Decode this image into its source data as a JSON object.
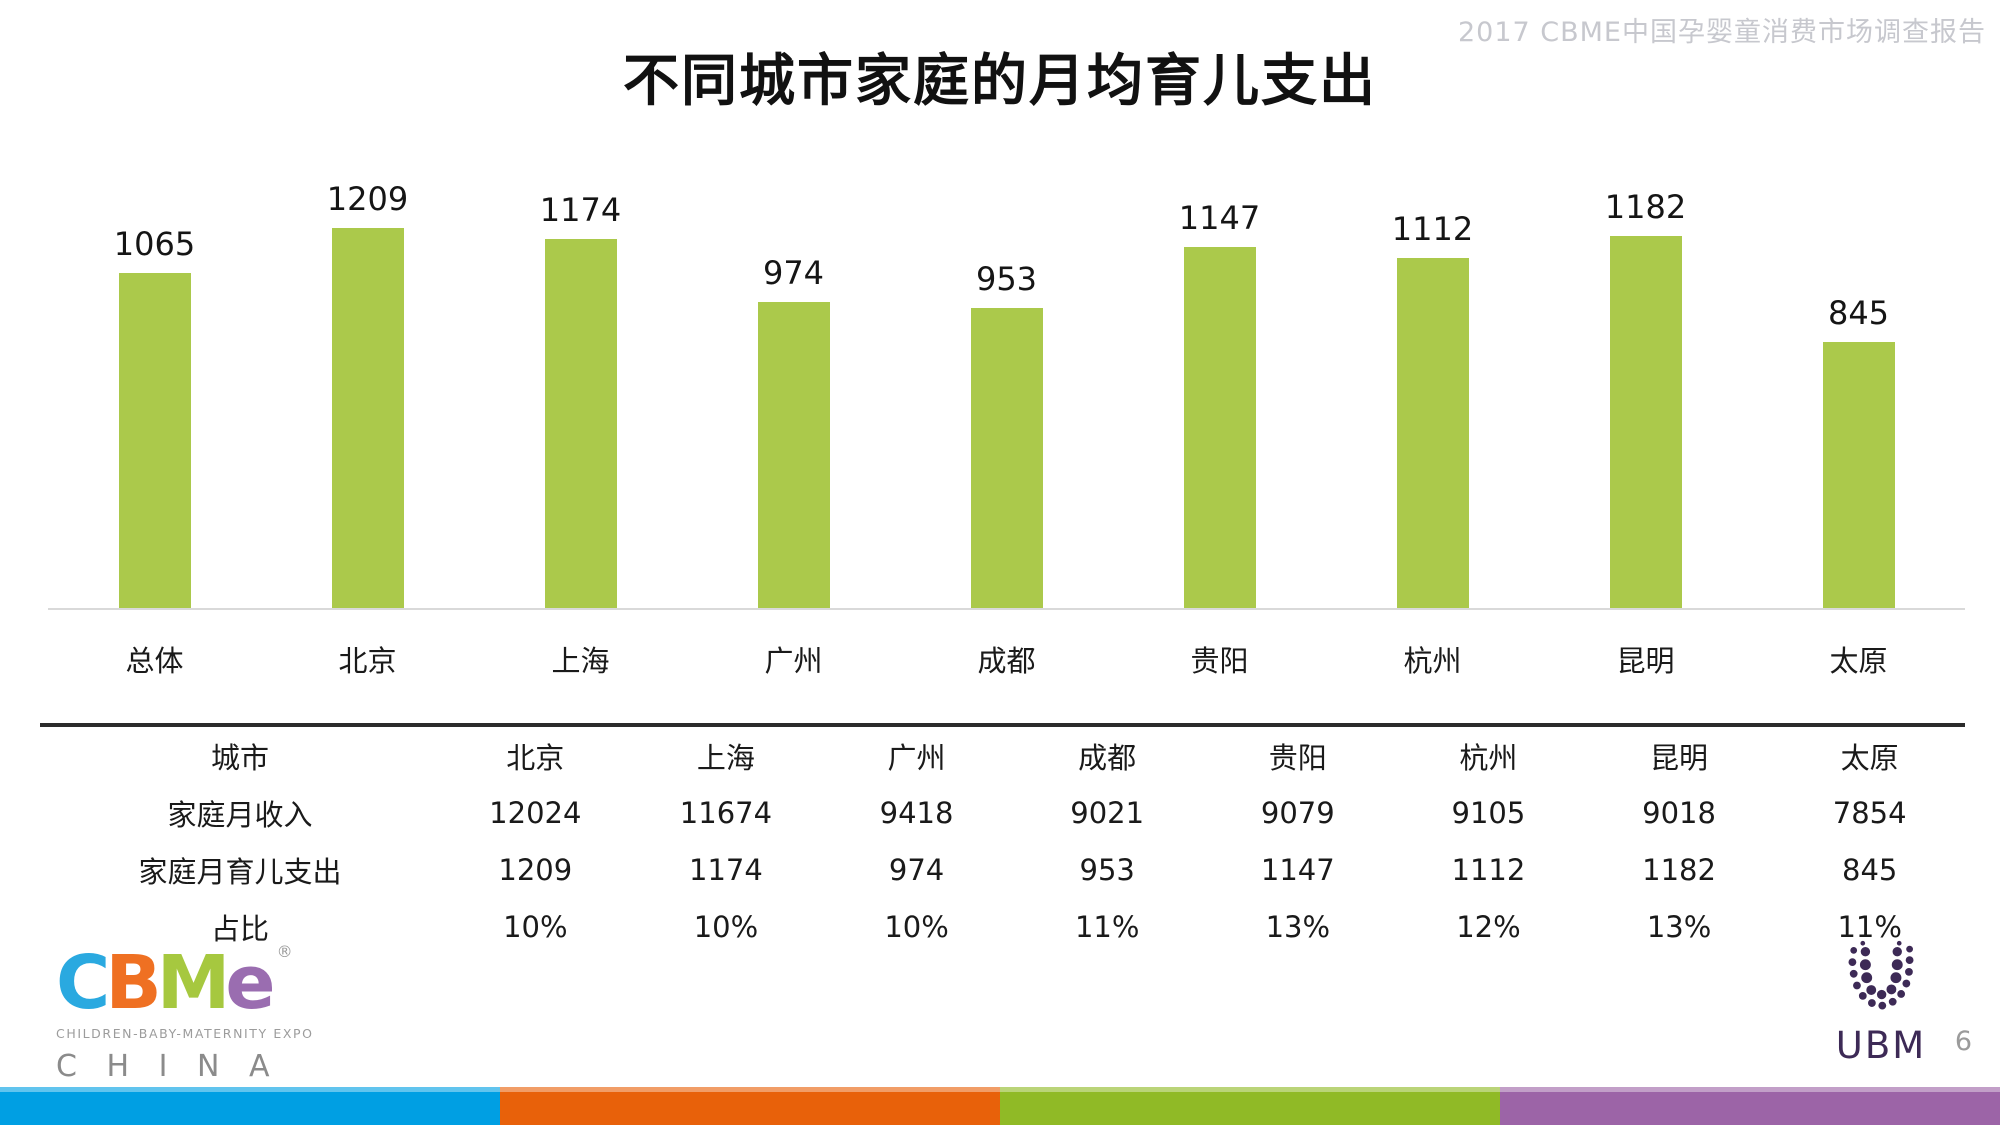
{
  "header": {
    "watermark": "2017 CBME中国孕婴童消费市场调查报告",
    "title": "不同城市家庭的月均育儿支出"
  },
  "chart_data": {
    "type": "bar",
    "title": "不同城市家庭的月均育儿支出",
    "categories": [
      "总体",
      "北京",
      "上海",
      "广州",
      "成都",
      "贵阳",
      "杭州",
      "昆明",
      "太原"
    ],
    "values": [
      1065,
      1209,
      1174,
      974,
      953,
      1147,
      1112,
      1182,
      845
    ],
    "value_labels": true,
    "bar_color": "#abc94b",
    "axis_line_color": "#d9d9d9",
    "ylim": [
      0,
      1209
    ],
    "grid": false,
    "legend": "none"
  },
  "table": {
    "rows": [
      {
        "label": "城市",
        "cells": [
          "北京",
          "上海",
          "广州",
          "成都",
          "贵阳",
          "杭州",
          "昆明",
          "太原"
        ]
      },
      {
        "label": "家庭月收入",
        "cells": [
          "12024",
          "11674",
          "9418",
          "9021",
          "9079",
          "9105",
          "9018",
          "7854"
        ]
      },
      {
        "label": "家庭月育儿支出",
        "cells": [
          "1209",
          "1174",
          "974",
          "953",
          "1147",
          "1112",
          "1182",
          "845"
        ]
      },
      {
        "label": "占比",
        "cells": [
          "10%",
          "10%",
          "10%",
          "11%",
          "13%",
          "12%",
          "13%",
          "11%"
        ]
      }
    ]
  },
  "footer": {
    "cbme": {
      "letters": [
        {
          "char": "C",
          "color": "#2aa9e0"
        },
        {
          "char": "B",
          "color": "#ef7022"
        },
        {
          "char": "M",
          "color": "#a6c83f"
        },
        {
          "char": "e",
          "color": "#9a6db0"
        }
      ],
      "registered": "®",
      "tagline": "CHILDREN-BABY-MATERNITY EXPO",
      "country": "C H I N A"
    },
    "ubm": {
      "label": "UBM",
      "color": "#3d2a56"
    },
    "page_number": "6",
    "strip_colors": [
      "#009fe3",
      "#e8610a",
      "#90ba26",
      "#9c64a7"
    ]
  }
}
